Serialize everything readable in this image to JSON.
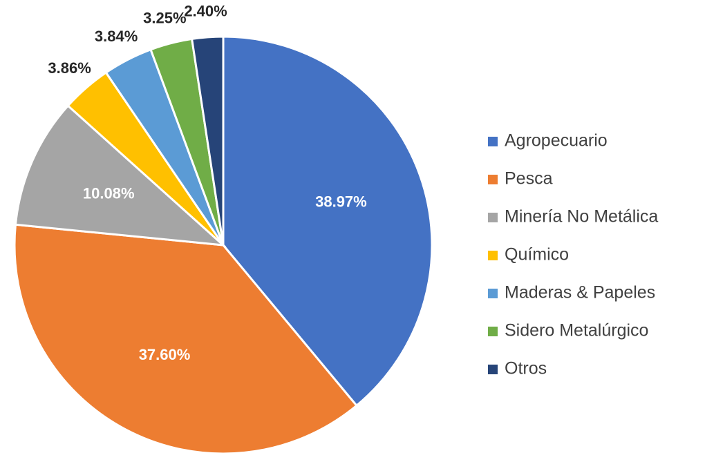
{
  "chart_data": {
    "type": "pie",
    "categories": [
      "Agropecuario",
      "Pesca",
      "Minería No Metálica",
      "Químico",
      "Maderas & Papeles",
      "Sidero Metalúrgico",
      "Otros"
    ],
    "values": [
      38.97,
      37.6,
      10.08,
      3.86,
      3.84,
      3.25,
      2.4
    ],
    "value_labels": [
      "38.97%",
      "37.60%",
      "10.08%",
      "3.86%",
      "3.84%",
      "3.25%",
      "2.40%"
    ],
    "colors": [
      "#4472c4",
      "#ed7d31",
      "#a5a5a5",
      "#ffc000",
      "#5b9bd5",
      "#70ad47",
      "#264478"
    ],
    "legend": "right"
  }
}
